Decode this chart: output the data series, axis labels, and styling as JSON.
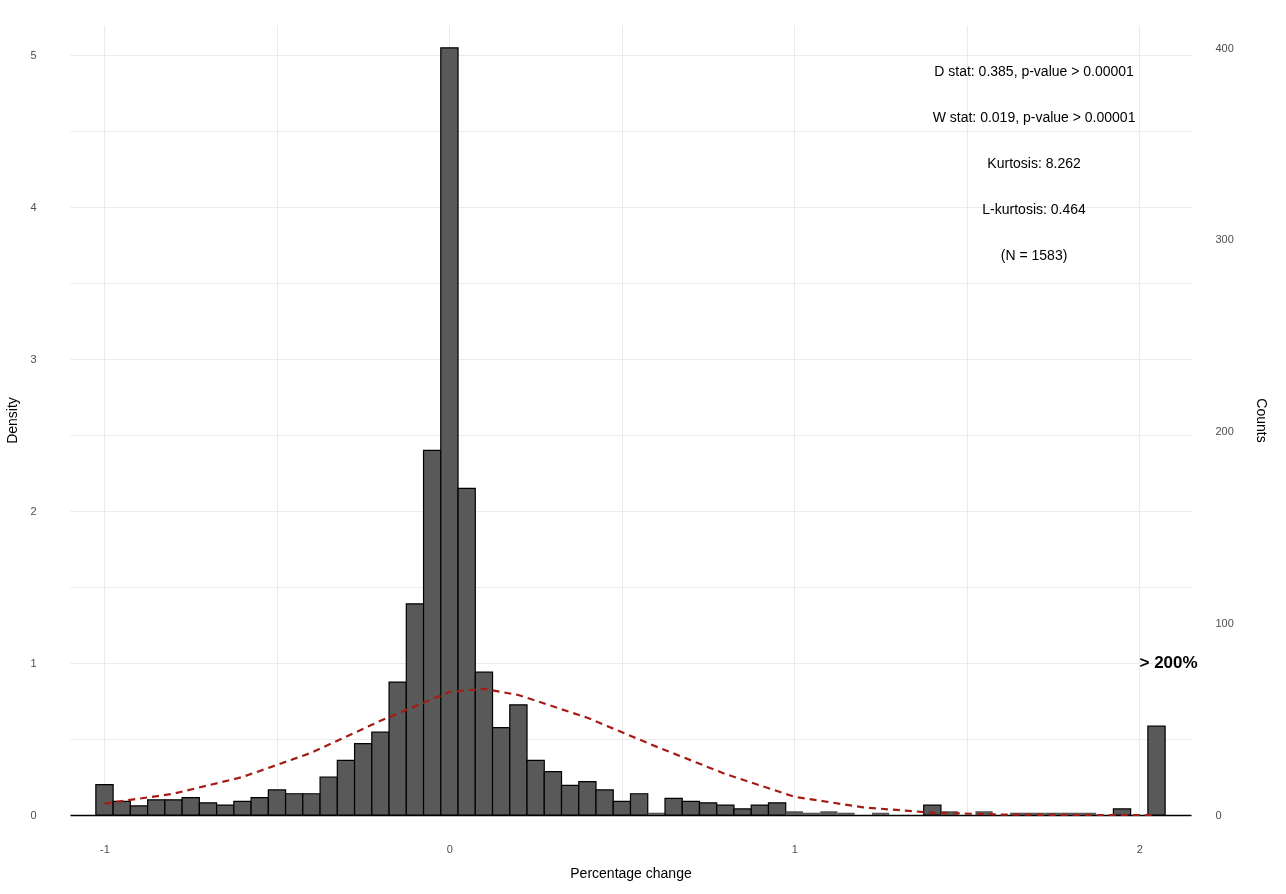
{
  "chart_data": {
    "type": "histogram",
    "xlabel": "Percentage change",
    "ylabel": "Density",
    "y2label": "Counts",
    "bins": [
      -1.025,
      -0.975,
      -0.925,
      -0.875,
      -0.825,
      -0.775,
      -0.725,
      -0.675,
      -0.625,
      -0.575,
      -0.525,
      -0.475,
      -0.425,
      -0.375,
      -0.325,
      -0.275,
      -0.225,
      -0.175,
      -0.125,
      -0.075,
      -0.025,
      0.025,
      0.075,
      0.125,
      0.175,
      0.225,
      0.275,
      0.325,
      0.375,
      0.425,
      0.475,
      0.525,
      0.575,
      0.625,
      0.675,
      0.725,
      0.775,
      0.825,
      0.875,
      0.925,
      0.975,
      1.025,
      1.075,
      1.125,
      1.175,
      1.225,
      1.275,
      1.325,
      1.375,
      1.425,
      1.475,
      1.525,
      1.575,
      1.625,
      1.675,
      1.725,
      1.775,
      1.825,
      1.875,
      1.925,
      1.975,
      2.025,
      2.075
    ],
    "values": [
      0.2,
      0.09,
      0.06,
      0.1,
      0.1,
      0.115,
      0.08,
      0.065,
      0.09,
      0.115,
      0.165,
      0.14,
      0.14,
      0.25,
      0.36,
      0.47,
      0.545,
      0.875,
      1.39,
      2.4,
      5.05,
      2.15,
      0.94,
      0.575,
      0.725,
      0.36,
      0.285,
      0.195,
      0.22,
      0.165,
      0.09,
      0.14,
      0.015,
      0.11,
      0.09,
      0.08,
      0.065,
      0.04,
      0.065,
      0.08,
      0.025,
      0.015,
      0.025,
      0.015,
      0,
      0.015,
      0,
      0,
      0.065,
      0.025,
      0,
      0.025,
      0,
      0.015,
      0.015,
      0.015,
      0.015,
      0.015,
      0,
      0.04,
      0,
      0.585
    ],
    "color": "#595959",
    "series": [
      {
        "type": "line",
        "color": "#a51c16",
        "line_style": "dashed",
        "x": [
          -1,
          -0.8,
          -0.6,
          -0.4,
          -0.2,
          0,
          0.1,
          0.2,
          0.4,
          0.6,
          0.8,
          1,
          1.2,
          1.4,
          1.6,
          1.8,
          2.05
        ],
        "values": [
          0.075,
          0.14,
          0.25,
          0.41,
          0.62,
          0.81,
          0.83,
          0.79,
          0.64,
          0.45,
          0.27,
          0.12,
          0.05,
          0.015,
          0.003,
          0,
          0
        ]
      }
    ],
    "xlim": [
      -1.1,
      2.15
    ],
    "xticks": [
      -1,
      {
        "value": -0.5,
        "label": null
      },
      0,
      {
        "value": 0.5,
        "label": null
      },
      1,
      {
        "value": 1.5,
        "label": null
      },
      2
    ],
    "ylim": [
      0,
      5.2
    ],
    "yticks": [
      0,
      {
        "value": 0.5,
        "label": null
      },
      1,
      {
        "value": 1.5,
        "label": null
      },
      2,
      {
        "value": 2.5,
        "label": null
      },
      3,
      {
        "value": 3.5,
        "label": null
      },
      4,
      {
        "value": 4.5,
        "label": null
      },
      5
    ],
    "y2lim": [
      0,
      412
    ],
    "y2ticks": [
      0,
      100,
      200,
      300,
      400
    ],
    "grid": true,
    "annotations": [
      "D stat: 0.385, p-value > 0.00001",
      "W stat: 0.019, p-value > 0.00001",
      "Kurtosis: 8.262",
      "L-kurtosis: 0.464",
      "(N = 1583)",
      "> 200%"
    ]
  }
}
